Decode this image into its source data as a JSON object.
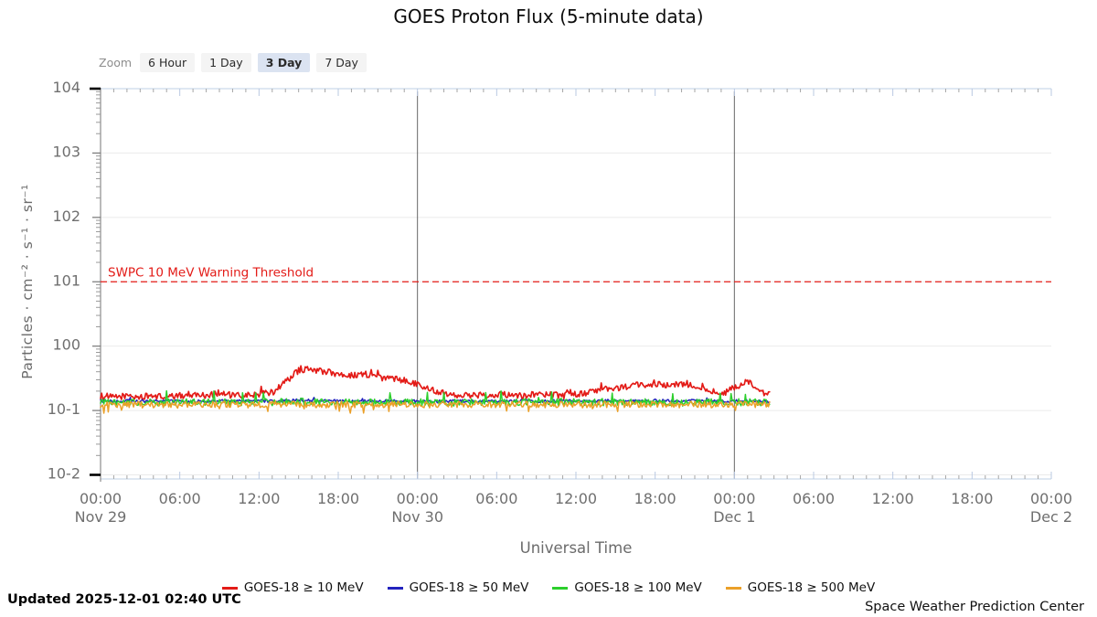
{
  "title": "GOES Proton Flux (5-minute data)",
  "zoom_control": {
    "label": "Zoom",
    "buttons": [
      {
        "label": "6 Hour",
        "selected": false
      },
      {
        "label": "1 Day",
        "selected": false
      },
      {
        "label": "3 Day",
        "selected": true
      },
      {
        "label": "7 Day",
        "selected": false
      }
    ]
  },
  "footer": {
    "updated": "Updated 2025-12-01 02:40 UTC",
    "credit": "Space Weather Prediction Center"
  },
  "chart_data": {
    "type": "line",
    "title": "GOES Proton Flux (5-minute data)",
    "xlabel": "Universal Time",
    "ylabel": "Particles · cm⁻² · s⁻¹ · sr⁻¹",
    "y_scale": "log",
    "ylim": [
      0.01,
      10000
    ],
    "y_ticks": [
      {
        "exp": 4,
        "label": "104"
      },
      {
        "exp": 3,
        "label": "103"
      },
      {
        "exp": 2,
        "label": "102"
      },
      {
        "exp": 1,
        "label": "101"
      },
      {
        "exp": 0,
        "label": "100"
      },
      {
        "exp": -1,
        "label": "10-1"
      },
      {
        "exp": -2,
        "label": "10-2"
      }
    ],
    "x_span_hours": 72,
    "x_ticks": [
      {
        "hour": 0,
        "time": "00:00",
        "date": "Nov 29"
      },
      {
        "hour": 6,
        "time": "06:00"
      },
      {
        "hour": 12,
        "time": "12:00"
      },
      {
        "hour": 18,
        "time": "18:00"
      },
      {
        "hour": 24,
        "time": "00:00",
        "date": "Nov 30"
      },
      {
        "hour": 30,
        "time": "06:00"
      },
      {
        "hour": 36,
        "time": "12:00"
      },
      {
        "hour": 42,
        "time": "18:00"
      },
      {
        "hour": 48,
        "time": "00:00",
        "date": "Dec 1"
      },
      {
        "hour": 54,
        "time": "06:00"
      },
      {
        "hour": 60,
        "time": "12:00"
      },
      {
        "hour": 66,
        "time": "18:00"
      },
      {
        "hour": 72,
        "time": "00:00",
        "date": "Dec 2"
      }
    ],
    "day_gridlines_hours": [
      24,
      48
    ],
    "threshold": {
      "label": "SWPC 10 MeV Warning Threshold",
      "value": 10,
      "color": "#e31b17"
    },
    "sample_interval_hours": 0.083333,
    "end_hour": 50.7,
    "grid_on": true,
    "legend_position": "bottom",
    "colors": {
      "plot_edge": "#ccd9ea",
      "spine": "#8c8c8c",
      "major_tick": "#000000",
      "mid_tick": "#777777",
      "minor_tick": "#9a9a9a",
      "h_grid": "#ebebeb",
      "day_grid": "#666666",
      "tick_label": "#6f6f6f",
      "axis_label": "#6b6b6b"
    },
    "series": [
      {
        "name": "GOES-18 ≥ 10 MeV",
        "color": "#e31b17",
        "noise_log10": 0.05,
        "spike": {
          "prob": 0.015,
          "factor": 1.18
        },
        "anchors_hourly": [
          0.17,
          0.16,
          0.17,
          0.16,
          0.17,
          0.16,
          0.17,
          0.18,
          0.17,
          0.19,
          0.17,
          0.17,
          0.18,
          0.19,
          0.28,
          0.42,
          0.44,
          0.4,
          0.37,
          0.35,
          0.37,
          0.33,
          0.31,
          0.3,
          0.26,
          0.21,
          0.19,
          0.175,
          0.17,
          0.18,
          0.17,
          0.18,
          0.17,
          0.18,
          0.18,
          0.17,
          0.18,
          0.19,
          0.21,
          0.22,
          0.24,
          0.25,
          0.26,
          0.24,
          0.26,
          0.24,
          0.22,
          0.17,
          0.23,
          0.28,
          0.19,
          0.17
        ]
      },
      {
        "name": "GOES-18 ≥ 50 MeV",
        "color": "#2323be",
        "noise_log10": 0.022,
        "spike": {
          "prob": 0.01,
          "factor": 1.1
        },
        "anchors_hourly": [
          0.14,
          0.138,
          0.142,
          0.14,
          0.139,
          0.141,
          0.14,
          0.138,
          0.14,
          0.142,
          0.14,
          0.139,
          0.141,
          0.14,
          0.142,
          0.145,
          0.143,
          0.141,
          0.14,
          0.139,
          0.14,
          0.141,
          0.14,
          0.139,
          0.14,
          0.138,
          0.139,
          0.14,
          0.141,
          0.14,
          0.139,
          0.14,
          0.141,
          0.139,
          0.14,
          0.141,
          0.14,
          0.139,
          0.141,
          0.142,
          0.14,
          0.141,
          0.143,
          0.141,
          0.14,
          0.142,
          0.14,
          0.139,
          0.141,
          0.14,
          0.139,
          0.138
        ]
      },
      {
        "name": "GOES-18 ≥ 100 MeV",
        "color": "#2ccf2c",
        "noise_log10": 0.055,
        "spike": {
          "prob": 0.03,
          "factor": 1.35
        },
        "anchors_hourly": [
          0.134,
          0.132,
          0.135,
          0.133,
          0.134,
          0.132,
          0.135,
          0.134,
          0.133,
          0.135,
          0.134,
          0.133,
          0.134,
          0.135,
          0.136,
          0.137,
          0.135,
          0.134,
          0.135,
          0.133,
          0.134,
          0.135,
          0.133,
          0.134,
          0.135,
          0.133,
          0.134,
          0.133,
          0.135,
          0.134,
          0.133,
          0.134,
          0.135,
          0.133,
          0.134,
          0.135,
          0.134,
          0.133,
          0.135,
          0.134,
          0.135,
          0.134,
          0.136,
          0.134,
          0.133,
          0.135,
          0.134,
          0.133,
          0.134,
          0.135,
          0.133,
          0.132
        ]
      },
      {
        "name": "GOES-18 ≥ 500 MeV",
        "color": "#eba028",
        "noise_log10": 0.05,
        "spike": {
          "prob": 0.025,
          "factor": 0.78
        },
        "anchors_hourly": [
          0.124,
          0.122,
          0.125,
          0.123,
          0.124,
          0.122,
          0.125,
          0.124,
          0.123,
          0.125,
          0.124,
          0.123,
          0.124,
          0.125,
          0.126,
          0.125,
          0.124,
          0.123,
          0.125,
          0.123,
          0.124,
          0.125,
          0.123,
          0.124,
          0.125,
          0.123,
          0.124,
          0.123,
          0.125,
          0.124,
          0.123,
          0.124,
          0.125,
          0.123,
          0.124,
          0.125,
          0.124,
          0.123,
          0.125,
          0.124,
          0.125,
          0.124,
          0.126,
          0.124,
          0.123,
          0.125,
          0.124,
          0.123,
          0.124,
          0.125,
          0.123,
          0.122
        ]
      }
    ]
  }
}
